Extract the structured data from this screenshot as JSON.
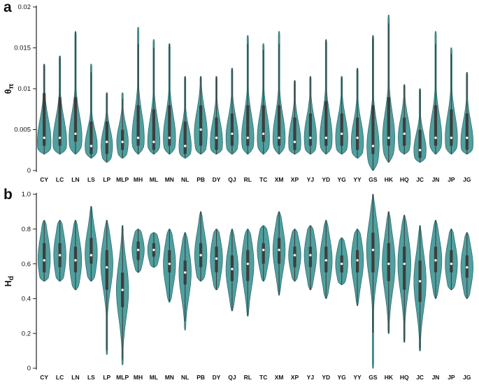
{
  "colors": {
    "violin_fill": "#519f9f",
    "violin_stroke": "#2e6f6f",
    "box": "#3d3d3d",
    "median": "#ffffff",
    "axis": "#222222",
    "text": "#111111",
    "background": "#ffffff"
  },
  "chart_data": [
    {
      "type": "violin",
      "panel_label": "a",
      "ylabel": {
        "main": "θ",
        "sub": "π"
      },
      "ylim": [
        0,
        0.02
      ],
      "yticks": [
        0,
        0.005,
        0.01,
        0.015,
        0.02
      ],
      "ytick_labels": [
        "0",
        "0.005",
        "0.01",
        "0.015",
        "0.02"
      ],
      "grid": false,
      "legend": "none",
      "categories": [
        "CY",
        "LC",
        "LN",
        "LS",
        "LP",
        "MLP",
        "MH",
        "ML",
        "MN",
        "NL",
        "PB",
        "DY",
        "QJ",
        "RL",
        "TC",
        "XM",
        "XP",
        "YJ",
        "YD",
        "YG",
        "YY",
        "GS",
        "HK",
        "HQ",
        "JC",
        "JN",
        "JP",
        "JG"
      ],
      "violin_columns": [
        "lo",
        "hi",
        "mode",
        "sigma",
        "q1",
        "med",
        "q3",
        "w"
      ],
      "violins": [
        [
          0.002,
          0.013,
          0.0035,
          0.0028,
          0.003,
          0.004,
          0.0095,
          0.95
        ],
        [
          0.002,
          0.014,
          0.0035,
          0.0028,
          0.003,
          0.004,
          0.009,
          0.95
        ],
        [
          0.002,
          0.017,
          0.004,
          0.0028,
          0.0035,
          0.0045,
          0.009,
          0.9
        ],
        [
          0.0015,
          0.013,
          0.003,
          0.002,
          0.002,
          0.003,
          0.006,
          0.85
        ],
        [
          0.001,
          0.0095,
          0.003,
          0.002,
          0.002,
          0.0035,
          0.006,
          0.8
        ],
        [
          0.0015,
          0.0095,
          0.0035,
          0.002,
          0.0025,
          0.0035,
          0.005,
          0.8
        ],
        [
          0.002,
          0.0175,
          0.004,
          0.003,
          0.003,
          0.004,
          0.008,
          0.85
        ],
        [
          0.002,
          0.016,
          0.0035,
          0.0028,
          0.0025,
          0.0035,
          0.0075,
          0.85
        ],
        [
          0.002,
          0.0155,
          0.004,
          0.0028,
          0.003,
          0.004,
          0.008,
          0.85
        ],
        [
          0.0015,
          0.0115,
          0.003,
          0.0022,
          0.002,
          0.003,
          0.006,
          0.85
        ],
        [
          0.002,
          0.0115,
          0.0045,
          0.0028,
          0.003,
          0.005,
          0.008,
          0.9
        ],
        [
          0.002,
          0.0115,
          0.0035,
          0.0025,
          0.0025,
          0.004,
          0.0065,
          0.85
        ],
        [
          0.002,
          0.0125,
          0.004,
          0.0025,
          0.003,
          0.0045,
          0.007,
          0.85
        ],
        [
          0.002,
          0.0165,
          0.004,
          0.0028,
          0.003,
          0.004,
          0.008,
          0.85
        ],
        [
          0.002,
          0.0155,
          0.004,
          0.0028,
          0.0035,
          0.0045,
          0.008,
          0.85
        ],
        [
          0.002,
          0.017,
          0.004,
          0.0028,
          0.003,
          0.004,
          0.008,
          0.85
        ],
        [
          0.002,
          0.011,
          0.0035,
          0.0024,
          0.0025,
          0.0035,
          0.0065,
          0.85
        ],
        [
          0.002,
          0.0115,
          0.004,
          0.0025,
          0.003,
          0.004,
          0.007,
          0.85
        ],
        [
          0.002,
          0.016,
          0.004,
          0.0028,
          0.003,
          0.004,
          0.0085,
          0.85
        ],
        [
          0.002,
          0.0115,
          0.004,
          0.0025,
          0.003,
          0.0045,
          0.007,
          0.85
        ],
        [
          0.0015,
          0.0125,
          0.0035,
          0.0025,
          0.0025,
          0.004,
          0.0065,
          0.85
        ],
        [
          0.0,
          0.0165,
          0.003,
          0.0028,
          0.002,
          0.003,
          0.008,
          0.85
        ],
        [
          0.001,
          0.019,
          0.004,
          0.003,
          0.003,
          0.004,
          0.009,
          0.85
        ],
        [
          0.002,
          0.0105,
          0.004,
          0.0024,
          0.003,
          0.0045,
          0.0065,
          0.85
        ],
        [
          0.001,
          0.01,
          0.0025,
          0.002,
          0.0015,
          0.0025,
          0.005,
          0.85
        ],
        [
          0.002,
          0.017,
          0.004,
          0.0028,
          0.003,
          0.004,
          0.008,
          0.85
        ],
        [
          0.002,
          0.015,
          0.004,
          0.0028,
          0.003,
          0.004,
          0.0075,
          0.85
        ],
        [
          0.002,
          0.012,
          0.0035,
          0.0025,
          0.0025,
          0.004,
          0.007,
          0.85
        ]
      ]
    },
    {
      "type": "violin",
      "panel_label": "b",
      "ylabel": {
        "main": "H",
        "sub": "d"
      },
      "ylim": [
        0,
        1.0
      ],
      "yticks": [
        0,
        0.2,
        0.4,
        0.6,
        0.8,
        1.0
      ],
      "ytick_labels": [
        "0",
        "0.2",
        "0.4",
        "0.6",
        "0.8",
        "1.0"
      ],
      "grid": false,
      "legend": "none",
      "categories": [
        "CY",
        "LC",
        "LN",
        "LS",
        "LP",
        "MLP",
        "MH",
        "ML",
        "MN",
        "NL",
        "PB",
        "DY",
        "QJ",
        "RL",
        "TC",
        "XM",
        "XP",
        "YJ",
        "YD",
        "YG",
        "YY",
        "GS",
        "HK",
        "HQ",
        "JC",
        "JN",
        "JP",
        "JG"
      ],
      "violin_columns": [
        "lo",
        "hi",
        "mode",
        "sigma",
        "q1",
        "med",
        "q3",
        "w"
      ],
      "violins": [
        [
          0.5,
          0.85,
          0.63,
          0.13,
          0.55,
          0.62,
          0.72,
          0.85
        ],
        [
          0.5,
          0.85,
          0.65,
          0.13,
          0.58,
          0.65,
          0.72,
          0.85
        ],
        [
          0.45,
          0.85,
          0.62,
          0.13,
          0.55,
          0.62,
          0.7,
          0.85
        ],
        [
          0.5,
          0.93,
          0.66,
          0.13,
          0.6,
          0.65,
          0.75,
          0.85
        ],
        [
          0.08,
          0.85,
          0.6,
          0.14,
          0.45,
          0.58,
          0.68,
          0.85
        ],
        [
          0.02,
          0.82,
          0.45,
          0.16,
          0.35,
          0.45,
          0.55,
          0.85
        ],
        [
          0.55,
          0.8,
          0.68,
          0.09,
          0.62,
          0.68,
          0.73,
          0.85
        ],
        [
          0.58,
          0.78,
          0.68,
          0.08,
          0.64,
          0.68,
          0.72,
          0.85
        ],
        [
          0.38,
          0.8,
          0.6,
          0.13,
          0.55,
          0.6,
          0.68,
          0.85
        ],
        [
          0.22,
          0.78,
          0.55,
          0.14,
          0.48,
          0.55,
          0.62,
          0.85
        ],
        [
          0.5,
          0.9,
          0.65,
          0.13,
          0.58,
          0.65,
          0.72,
          0.85
        ],
        [
          0.45,
          0.8,
          0.63,
          0.12,
          0.55,
          0.63,
          0.7,
          0.85
        ],
        [
          0.33,
          0.8,
          0.57,
          0.13,
          0.5,
          0.57,
          0.65,
          0.85
        ],
        [
          0.3,
          0.8,
          0.6,
          0.14,
          0.5,
          0.6,
          0.68,
          0.85
        ],
        [
          0.5,
          0.82,
          0.68,
          0.11,
          0.6,
          0.68,
          0.72,
          0.85
        ],
        [
          0.42,
          0.9,
          0.68,
          0.13,
          0.6,
          0.68,
          0.75,
          0.85
        ],
        [
          0.5,
          0.8,
          0.65,
          0.1,
          0.58,
          0.65,
          0.7,
          0.85
        ],
        [
          0.45,
          0.82,
          0.65,
          0.12,
          0.58,
          0.65,
          0.7,
          0.85
        ],
        [
          0.4,
          0.85,
          0.62,
          0.13,
          0.55,
          0.62,
          0.7,
          0.85
        ],
        [
          0.48,
          0.75,
          0.6,
          0.1,
          0.55,
          0.6,
          0.65,
          0.85
        ],
        [
          0.36,
          0.8,
          0.62,
          0.13,
          0.55,
          0.62,
          0.68,
          0.85
        ],
        [
          0.0,
          1.0,
          0.68,
          0.16,
          0.55,
          0.68,
          0.78,
          0.9
        ],
        [
          0.2,
          0.9,
          0.6,
          0.16,
          0.5,
          0.6,
          0.72,
          0.9
        ],
        [
          0.15,
          0.88,
          0.6,
          0.16,
          0.45,
          0.6,
          0.7,
          0.9
        ],
        [
          0.1,
          0.82,
          0.5,
          0.16,
          0.38,
          0.5,
          0.62,
          0.85
        ],
        [
          0.4,
          0.85,
          0.62,
          0.13,
          0.55,
          0.62,
          0.7,
          0.85
        ],
        [
          0.45,
          0.8,
          0.6,
          0.12,
          0.55,
          0.6,
          0.68,
          0.85
        ],
        [
          0.4,
          0.78,
          0.58,
          0.12,
          0.52,
          0.58,
          0.65,
          0.85
        ]
      ]
    }
  ]
}
